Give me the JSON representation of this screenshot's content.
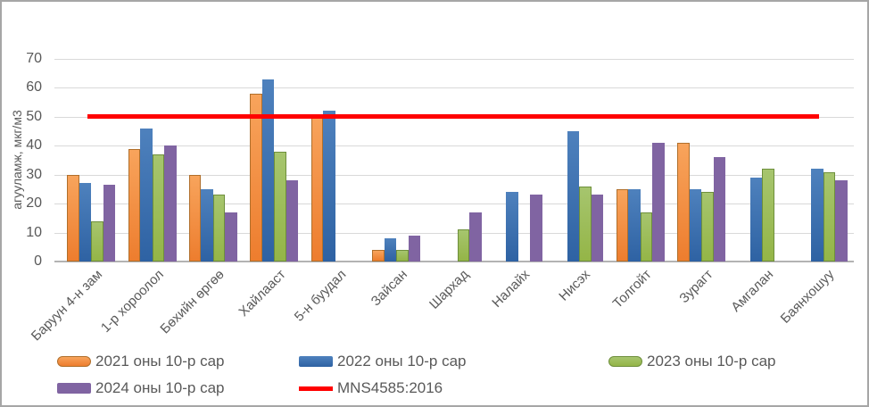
{
  "chart_data": {
    "type": "bar",
    "title": "",
    "ylabel": "агууламж, мкг/м3",
    "xlabel": "",
    "ylim": [
      0,
      70
    ],
    "y_ticks": [
      0,
      10,
      20,
      30,
      40,
      50,
      60,
      70
    ],
    "grid": true,
    "legend_position": "bottom",
    "categories": [
      "Баруун 4-н зам",
      "1-р хороолол",
      "Бөхийн өргөө",
      "Хайлааст",
      "5-н буудал",
      "Зайсан",
      "Шархад",
      "Налайх",
      "Нисэх",
      "Толгойт",
      "Зурагт",
      "Амгалан",
      "Баянхошуу"
    ],
    "series": [
      {
        "name": "2021 оны 10-р сар",
        "color": "#ED7D31",
        "values": [
          30,
          39,
          30,
          58,
          51,
          4,
          null,
          null,
          null,
          25,
          41,
          null,
          null
        ]
      },
      {
        "name": "2022 оны 10-р сар",
        "color": "#4F81BD",
        "values": [
          27,
          46,
          25,
          63,
          52,
          8,
          null,
          24,
          45,
          25,
          25,
          29,
          32
        ]
      },
      {
        "name": "2023 оны 10-р сар",
        "color": "#9BBB59",
        "values": [
          14,
          37,
          23,
          38,
          null,
          4,
          11,
          null,
          26,
          17,
          24,
          32,
          31
        ]
      },
      {
        "name": "2024 оны 10-р сар",
        "color": "#8064A2",
        "values": [
          26.5,
          40,
          17,
          28,
          null,
          9,
          17,
          23,
          23,
          41,
          36,
          null,
          28
        ]
      }
    ],
    "reference_line": {
      "name": "MNS4585:2016",
      "value": 50,
      "color": "#FF0000"
    },
    "axis_text_color": "#595959",
    "gridline_color": "#D9D9D9"
  }
}
